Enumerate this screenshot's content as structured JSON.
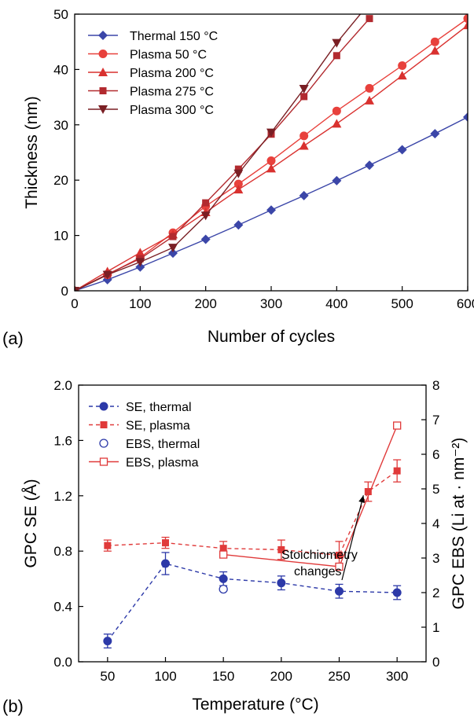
{
  "chart_data": [
    {
      "panel": "(a)",
      "type": "line",
      "xlabel": "Number of cycles",
      "ylabel": "Thickness (nm)",
      "xlim": [
        0,
        600
      ],
      "ylim": [
        0,
        50
      ],
      "xticks": [
        0,
        100,
        200,
        300,
        400,
        500,
        600
      ],
      "yticks": [
        0,
        10,
        20,
        30,
        40,
        50
      ],
      "legend_position": "top-left",
      "series": [
        {
          "name": "Thermal 150 °C",
          "color": "#3b46a8",
          "marker": "diamond",
          "x": [
            0,
            50,
            100,
            150,
            200,
            250,
            300,
            350,
            400,
            450,
            500,
            550,
            600
          ],
          "y": [
            0,
            2.0,
            4.3,
            6.8,
            9.3,
            11.9,
            14.6,
            17.2,
            19.9,
            22.7,
            25.5,
            28.4,
            31.4
          ]
        },
        {
          "name": "Plasma 50 °C",
          "color": "#e8413c",
          "marker": "circle",
          "x": [
            0,
            50,
            100,
            150,
            200,
            250,
            300,
            350,
            400,
            450,
            500,
            550,
            600
          ],
          "y": [
            0,
            2.9,
            6.0,
            10.5,
            15.3,
            19.3,
            23.5,
            28.0,
            32.5,
            36.6,
            40.7,
            45.0,
            49.2
          ]
        },
        {
          "name": "Plasma 200 °C",
          "color": "#d9312f",
          "marker": "triangle-up",
          "x": [
            0,
            50,
            100,
            150,
            200,
            250,
            300,
            350,
            400,
            450,
            500,
            550,
            600
          ],
          "y": [
            0,
            3.5,
            6.9,
            10.2,
            14.2,
            18.3,
            22.1,
            26.2,
            30.2,
            34.4,
            38.9,
            43.4,
            48.0
          ]
        },
        {
          "name": "Plasma 275 °C",
          "color": "#b22a2f",
          "marker": "square",
          "x": [
            0,
            50,
            100,
            150,
            200,
            250,
            300,
            350,
            400,
            450
          ],
          "y": [
            0,
            3.0,
            5.8,
            9.8,
            15.9,
            22.0,
            28.3,
            35.1,
            42.5,
            49.2
          ]
        },
        {
          "name": "Plasma 300 °C",
          "color": "#7a1f24",
          "marker": "triangle-down",
          "x": [
            0,
            50,
            100,
            150,
            200,
            250,
            300,
            350,
            400,
            450
          ],
          "y": [
            0,
            2.9,
            5.2,
            7.8,
            13.6,
            21.2,
            28.6,
            36.5,
            44.8,
            52.0
          ]
        }
      ]
    },
    {
      "panel": "(b)",
      "type": "line",
      "xlabel": "Temperature (°C)",
      "ylabel_left": "GPC SE (Å)",
      "ylabel_right": "GPC EBS (Li at · nm⁻²)",
      "xlim": [
        25,
        325
      ],
      "ylim_left": [
        0,
        2.0
      ],
      "ylim_right": [
        0,
        8
      ],
      "xticks": [
        50,
        100,
        150,
        200,
        250,
        300
      ],
      "yticks_left": [
        "0.0",
        "0.4",
        "0.8",
        "1.2",
        "1.6",
        "2.0"
      ],
      "yticks_right": [
        0,
        1,
        2,
        3,
        4,
        5,
        6,
        7,
        8
      ],
      "legend_position": "top-left",
      "annotation": {
        "lines": [
          "Stoichiometry",
          "changes"
        ],
        "points_to": {
          "x": 275,
          "y_left": 1.22
        }
      },
      "series": [
        {
          "name": "SE, thermal",
          "axis": "left",
          "color": "#2c39a8",
          "marker": "circle-filled",
          "line": "dashed",
          "x": [
            50,
            100,
            150,
            200,
            250,
            300
          ],
          "y": [
            0.15,
            0.71,
            0.6,
            0.57,
            0.51,
            0.5
          ],
          "err": [
            0.05,
            0.08,
            0.05,
            0.05,
            0.05,
            0.05
          ]
        },
        {
          "name": "SE, plasma",
          "axis": "left",
          "color": "#e03a3a",
          "marker": "square-filled",
          "line": "dashed",
          "x": [
            50,
            100,
            150,
            200,
            250,
            275,
            300
          ],
          "y": [
            0.84,
            0.86,
            0.82,
            0.81,
            0.77,
            1.23,
            1.38
          ],
          "err": [
            0.04,
            0.04,
            0.05,
            0.07,
            0.1,
            0.07,
            0.08
          ]
        },
        {
          "name": "EBS, thermal",
          "axis": "right",
          "color": "#2c39a8",
          "marker": "circle-open",
          "line": "none",
          "x": [
            150
          ],
          "y": [
            2.1
          ]
        },
        {
          "name": "EBS, plasma",
          "axis": "right",
          "color": "#e03a3a",
          "marker": "square-open",
          "line": "solid",
          "x": [
            150,
            250,
            300
          ],
          "y": [
            3.1,
            2.75,
            6.83
          ]
        }
      ]
    }
  ]
}
